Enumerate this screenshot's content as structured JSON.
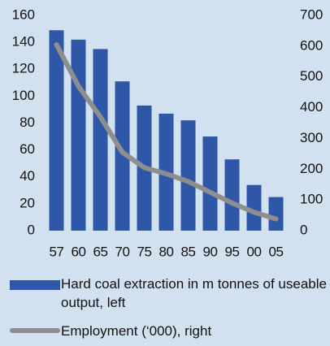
{
  "chart_data": {
    "type": "bar_line",
    "categories": [
      "57",
      "60",
      "65",
      "70",
      "75",
      "80",
      "85",
      "90",
      "95",
      "00",
      "05"
    ],
    "series": [
      {
        "name": "Hard coal extraction in m tonnes of useable output, left",
        "color": "#2f57a8",
        "values": [
          149,
          142,
          135,
          111,
          93,
          87,
          82,
          70,
          53,
          34,
          25
        ]
      },
      {
        "name": "Employment (‘000), right",
        "color": "#8e8e8e",
        "axis": "y2",
        "values": [
          605,
          470,
          370,
          255,
          205,
          185,
          160,
          125,
          90,
          60,
          38
        ]
      }
    ],
    "ylim": [
      0,
      160
    ],
    "yticks": [
      0,
      20,
      40,
      60,
      80,
      100,
      120,
      140,
      160
    ],
    "y2lim": [
      0,
      700
    ],
    "y2ticks": [
      0,
      100,
      200,
      300,
      400,
      500,
      600,
      700
    ]
  }
}
